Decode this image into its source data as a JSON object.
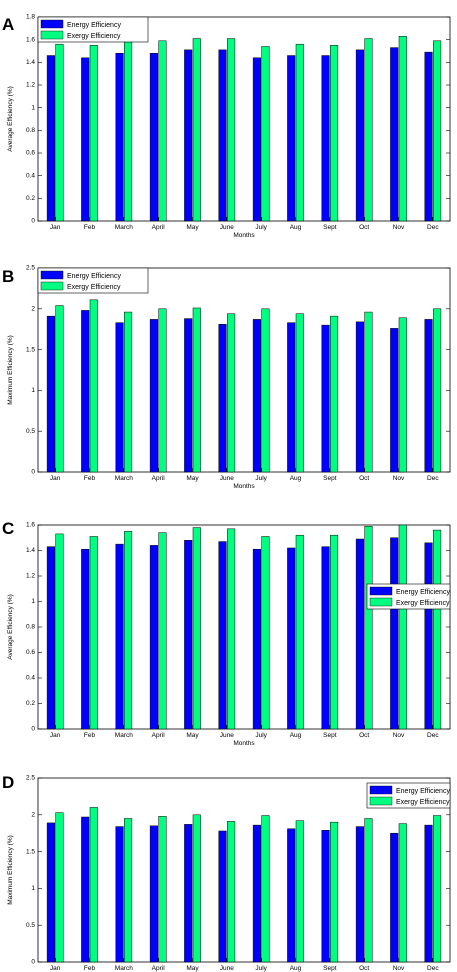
{
  "colors": {
    "energy": "#0000ff",
    "exergy": "#00ff80",
    "axis": "#000000",
    "background": "#ffffff"
  },
  "chart_data": [
    {
      "panel_label": "A",
      "type": "bar",
      "categories": [
        "Jan",
        "Feb",
        "March",
        "April",
        "May",
        "June",
        "July",
        "Aug",
        "Sept",
        "Oct",
        "Nov",
        "Dec"
      ],
      "series": [
        {
          "name": "Energy Efficiency",
          "values": [
            1.46,
            1.44,
            1.48,
            1.48,
            1.51,
            1.51,
            1.44,
            1.46,
            1.46,
            1.51,
            1.53,
            1.49
          ]
        },
        {
          "name": "Exergy Efficiency",
          "values": [
            1.56,
            1.55,
            1.58,
            1.59,
            1.61,
            1.61,
            1.54,
            1.56,
            1.55,
            1.61,
            1.63,
            1.59
          ]
        }
      ],
      "xlabel": "Months",
      "ylabel": "Average Efficiency (%)",
      "ylim": [
        0,
        1.8
      ],
      "yticks": [
        0,
        0.2,
        0.4,
        0.6,
        0.8,
        1,
        1.2,
        1.4,
        1.6,
        1.8
      ],
      "ytick_labels": [
        "0",
        "0.2",
        "0.4",
        "0.6",
        "0.8",
        "1",
        "1.2",
        "1.4",
        "1.6",
        "1.8"
      ],
      "legend": {
        "position": "top-left",
        "entries": [
          "Energy Efficiency",
          "Exergy Efficiency"
        ]
      },
      "grid": false
    },
    {
      "panel_label": "B",
      "type": "bar",
      "categories": [
        "Jan",
        "Feb",
        "March",
        "April",
        "May",
        "June",
        "July",
        "Aug",
        "Sept",
        "Oct",
        "Nov",
        "Dec"
      ],
      "series": [
        {
          "name": "Energy Efficiency",
          "values": [
            1.91,
            1.98,
            1.83,
            1.87,
            1.88,
            1.81,
            1.87,
            1.83,
            1.8,
            1.84,
            1.76,
            1.87
          ]
        },
        {
          "name": "Exergy Efficiency",
          "values": [
            2.04,
            2.11,
            1.96,
            2.0,
            2.01,
            1.94,
            2.0,
            1.94,
            1.91,
            1.96,
            1.89,
            2.0
          ]
        }
      ],
      "xlabel": "Months",
      "ylabel": "Maximum Efficiency (%)",
      "ylim": [
        0,
        2.5
      ],
      "yticks": [
        0,
        0.5,
        1,
        1.5,
        2,
        2.5
      ],
      "ytick_labels": [
        "0",
        "0.5",
        "1",
        "1.5",
        "2",
        "2.5"
      ],
      "legend": {
        "position": "top-left",
        "entries": [
          "Energy Efficiency",
          "Exergy Efficiency"
        ]
      },
      "grid": false
    },
    {
      "panel_label": "C",
      "type": "bar",
      "categories": [
        "Jan",
        "Feb",
        "March",
        "April",
        "May",
        "June",
        "July",
        "Aug",
        "Sept",
        "Oct",
        "Nov",
        "Dec"
      ],
      "series": [
        {
          "name": "Energy Efficiency",
          "values": [
            1.43,
            1.41,
            1.45,
            1.44,
            1.48,
            1.47,
            1.41,
            1.42,
            1.43,
            1.49,
            1.5,
            1.46
          ]
        },
        {
          "name": "Exergy Efficiency",
          "values": [
            1.53,
            1.51,
            1.55,
            1.54,
            1.58,
            1.57,
            1.51,
            1.52,
            1.52,
            1.59,
            1.6,
            1.56
          ]
        }
      ],
      "xlabel": "Months",
      "ylabel": "Average Efficiency (%)",
      "ylim": [
        0,
        1.6
      ],
      "yticks": [
        0,
        0.2,
        0.4,
        0.6,
        0.8,
        1,
        1.2,
        1.4,
        1.6
      ],
      "ytick_labels": [
        "0",
        "0.2",
        "0.4",
        "0.6",
        "0.8",
        "1",
        "1.2",
        "1.4",
        "1.6"
      ],
      "legend": {
        "position": "right",
        "entries": [
          "Energy Efficiency",
          "Exergy Efficiency"
        ]
      },
      "grid": false
    },
    {
      "panel_label": "D",
      "type": "bar",
      "categories": [
        "Jan",
        "Feb",
        "March",
        "April",
        "May",
        "June",
        "July",
        "Aug",
        "Sept",
        "Oct",
        "Nov",
        "Dec"
      ],
      "series": [
        {
          "name": "Energy Efficiency",
          "values": [
            1.89,
            1.97,
            1.84,
            1.85,
            1.87,
            1.78,
            1.86,
            1.81,
            1.79,
            1.84,
            1.75,
            1.86
          ]
        },
        {
          "name": "Exergy Efficiency",
          "values": [
            2.03,
            2.1,
            1.95,
            1.98,
            2.0,
            1.91,
            1.99,
            1.92,
            1.9,
            1.95,
            1.88,
            1.99
          ]
        }
      ],
      "xlabel": "Months",
      "ylabel": "Maximum Efficiency (%)",
      "ylim": [
        0,
        2.5
      ],
      "yticks": [
        0,
        0.5,
        1,
        1.5,
        2,
        2.5
      ],
      "ytick_labels": [
        "0",
        "0.5",
        "1",
        "1.5",
        "2",
        "2.5"
      ],
      "legend": {
        "position": "top-right",
        "entries": [
          "Energy Efficiency",
          "Exergy Efficiency"
        ]
      },
      "grid": false
    }
  ]
}
